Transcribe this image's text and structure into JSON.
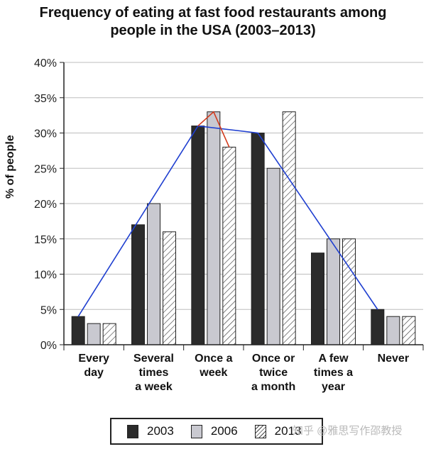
{
  "chart_data": {
    "type": "bar",
    "title_lines": [
      "Frequency of eating at fast food restaurants among",
      "people in the USA (2003–2013)"
    ],
    "ylabel": "% of people",
    "xlabel": "",
    "ylim": [
      0,
      40
    ],
    "yticks": [
      "0%",
      "5%",
      "10%",
      "15%",
      "20%",
      "25%",
      "30%",
      "35%",
      "40%"
    ],
    "grid": true,
    "categories": [
      [
        "Every",
        "day"
      ],
      [
        "Several",
        "times",
        "a week"
      ],
      [
        "Once a",
        "week"
      ],
      [
        "Once or",
        "twice",
        "a month"
      ],
      [
        "A few",
        "times a",
        "year"
      ],
      [
        "Never"
      ]
    ],
    "series": [
      {
        "name": "2003",
        "values": [
          4,
          17,
          31,
          30,
          13,
          5
        ],
        "color": "#2b2b2b",
        "pattern": "solid"
      },
      {
        "name": "2006",
        "values": [
          3,
          20,
          33,
          25,
          15,
          4
        ],
        "color": "#c9c9d0",
        "pattern": "solid"
      },
      {
        "name": "2013",
        "values": [
          3,
          16,
          28,
          33,
          15,
          4
        ],
        "color": "#ffffff",
        "pattern": "hatch"
      }
    ],
    "annotations": [
      {
        "color": "#1f3fd0",
        "points": [
          [
            0,
            4
          ],
          [
            2,
            31
          ],
          [
            3,
            30
          ],
          [
            5,
            5
          ]
        ]
      },
      {
        "color": "#d23a1c",
        "points": [
          [
            2,
            31
          ],
          [
            2,
            33
          ],
          [
            2,
            28
          ]
        ]
      }
    ],
    "legend": {
      "position": "bottom",
      "labels": [
        "2003",
        "2006",
        "2013"
      ]
    }
  },
  "watermark": "知乎 @雅思写作邵教授"
}
